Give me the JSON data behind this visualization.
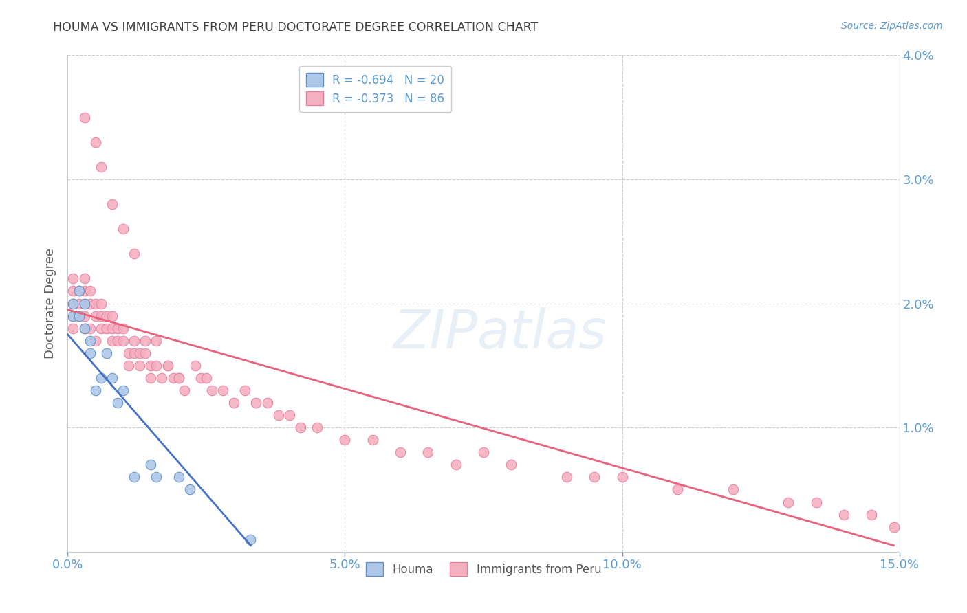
{
  "title": "HOUMA VS IMMIGRANTS FROM PERU DOCTORATE DEGREE CORRELATION CHART",
  "source": "Source: ZipAtlas.com",
  "ylabel": "Doctorate Degree",
  "watermark": "ZIPatlas",
  "xlim": [
    0.0,
    0.15
  ],
  "ylim": [
    0.0,
    0.04
  ],
  "xtick_vals": [
    0.0,
    0.05,
    0.1,
    0.15
  ],
  "xtick_labels": [
    "0.0%",
    "5.0%",
    "10.0%",
    "15.0%"
  ],
  "ytick_vals": [
    0.0,
    0.01,
    0.02,
    0.03,
    0.04
  ],
  "ytick_labels_right": [
    "",
    "1.0%",
    "2.0%",
    "3.0%",
    "4.0%"
  ],
  "legend1_label": "R = -0.694   N = 20",
  "legend2_label": "R = -0.373   N = 86",
  "legend1_color": "#adc8e8",
  "legend2_color": "#f5b0c0",
  "line1_color": "#4472c4",
  "line2_color": "#e8607a",
  "scatter1_color": "#adc8e8",
  "scatter2_color": "#f5b0c0",
  "scatter1_edgecolor": "#6090c8",
  "scatter2_edgecolor": "#e880a0",
  "background_color": "#ffffff",
  "grid_color": "#cccccc",
  "tick_color": "#5b9bd5",
  "title_color": "#404040",
  "houma_x": [
    0.001,
    0.001,
    0.002,
    0.002,
    0.003,
    0.003,
    0.004,
    0.004,
    0.005,
    0.006,
    0.007,
    0.008,
    0.009,
    0.01,
    0.012,
    0.015,
    0.016,
    0.02,
    0.022,
    0.033
  ],
  "houma_y": [
    0.02,
    0.019,
    0.021,
    0.019,
    0.02,
    0.018,
    0.017,
    0.016,
    0.013,
    0.014,
    0.016,
    0.014,
    0.012,
    0.013,
    0.006,
    0.007,
    0.006,
    0.006,
    0.005,
    0.001
  ],
  "peru_x": [
    0.001,
    0.001,
    0.001,
    0.001,
    0.001,
    0.002,
    0.002,
    0.002,
    0.003,
    0.003,
    0.003,
    0.003,
    0.003,
    0.004,
    0.004,
    0.004,
    0.005,
    0.005,
    0.005,
    0.006,
    0.006,
    0.006,
    0.007,
    0.007,
    0.008,
    0.008,
    0.008,
    0.009,
    0.009,
    0.01,
    0.01,
    0.011,
    0.011,
    0.012,
    0.012,
    0.013,
    0.013,
    0.014,
    0.015,
    0.015,
    0.016,
    0.017,
    0.018,
    0.019,
    0.02,
    0.021,
    0.023,
    0.024,
    0.025,
    0.026,
    0.028,
    0.03,
    0.032,
    0.034,
    0.036,
    0.038,
    0.04,
    0.042,
    0.045,
    0.05,
    0.055,
    0.06,
    0.065,
    0.07,
    0.075,
    0.08,
    0.09,
    0.095,
    0.1,
    0.11,
    0.12,
    0.13,
    0.135,
    0.14,
    0.145,
    0.149,
    0.003,
    0.005,
    0.006,
    0.008,
    0.01,
    0.012,
    0.014,
    0.016,
    0.018,
    0.02
  ],
  "peru_y": [
    0.02,
    0.019,
    0.021,
    0.022,
    0.018,
    0.021,
    0.02,
    0.019,
    0.022,
    0.021,
    0.02,
    0.019,
    0.018,
    0.021,
    0.02,
    0.018,
    0.02,
    0.019,
    0.017,
    0.02,
    0.019,
    0.018,
    0.019,
    0.018,
    0.019,
    0.018,
    0.017,
    0.018,
    0.017,
    0.018,
    0.017,
    0.016,
    0.015,
    0.017,
    0.016,
    0.016,
    0.015,
    0.016,
    0.015,
    0.014,
    0.015,
    0.014,
    0.015,
    0.014,
    0.014,
    0.013,
    0.015,
    0.014,
    0.014,
    0.013,
    0.013,
    0.012,
    0.013,
    0.012,
    0.012,
    0.011,
    0.011,
    0.01,
    0.01,
    0.009,
    0.009,
    0.008,
    0.008,
    0.007,
    0.008,
    0.007,
    0.006,
    0.006,
    0.006,
    0.005,
    0.005,
    0.004,
    0.004,
    0.003,
    0.003,
    0.002,
    0.035,
    0.033,
    0.031,
    0.028,
    0.026,
    0.024,
    0.017,
    0.017,
    0.015,
    0.014
  ],
  "line1_x": [
    0.0,
    0.033
  ],
  "line1_y": [
    0.0175,
    0.0005
  ],
  "line2_x": [
    0.0,
    0.149
  ],
  "line2_y": [
    0.0195,
    0.0005
  ]
}
